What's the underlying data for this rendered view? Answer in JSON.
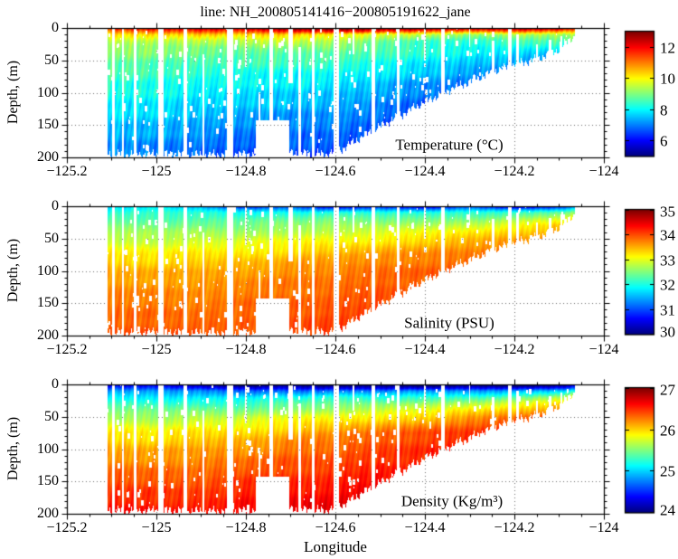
{
  "title": "line: NH_200805141416−200805191622_jane",
  "axes": {
    "x_label": "Longitude",
    "y_label": "Depth, (m)",
    "xlim": [
      -125.2,
      -124
    ],
    "ylim": [
      0,
      200
    ],
    "x_ticks": [
      -125.2,
      -125,
      -124.8,
      -124.6,
      -124.4,
      -124.2,
      -124
    ],
    "x_tick_labels": [
      "−125.2",
      "−125",
      "−124.8",
      "−124.6",
      "−124.4",
      "−124.2",
      "−124"
    ],
    "x_minor_step": 0.05,
    "y_ticks": [
      0,
      50,
      100,
      150,
      200
    ],
    "y_tick_labels": [
      "0",
      "50",
      "100",
      "150",
      "200"
    ],
    "y_minor_step": 10,
    "grid": "dotted"
  },
  "section_geometry": {
    "lon_extent": [
      -125.11,
      -124.065
    ],
    "bathymetry": {
      "lon": [
        -125.11,
        -125.0,
        -124.9,
        -124.8,
        -124.72,
        -124.62,
        -124.58,
        -124.55,
        -124.5,
        -124.45,
        -124.4,
        -124.35,
        -124.3,
        -124.25,
        -124.2,
        -124.15,
        -124.1,
        -124.08,
        -124.065
      ],
      "depth": [
        195,
        195,
        196,
        195,
        192,
        195,
        185,
        172,
        152,
        133,
        114,
        97,
        83,
        68,
        56,
        48,
        33,
        20,
        12
      ]
    },
    "gaps": [
      [
        -125.095,
        0.006,
        0,
        999
      ],
      [
        -125.075,
        0.005,
        0,
        999
      ],
      [
        -125.048,
        0.006,
        0,
        999
      ],
      [
        -124.99,
        0.013,
        0,
        999
      ],
      [
        -124.935,
        0.007,
        0,
        999
      ],
      [
        -124.895,
        0.005,
        40,
        999
      ],
      [
        -124.835,
        0.014,
        0,
        999
      ],
      [
        -124.8,
        0.005,
        0,
        60
      ],
      [
        -124.77,
        0.005,
        100,
        999
      ],
      [
        -124.744,
        0.008,
        0,
        999
      ],
      [
        -124.74,
        0.075,
        142,
        999
      ],
      [
        -124.7,
        0.01,
        0,
        85
      ],
      [
        -124.68,
        0.006,
        30,
        999
      ],
      [
        -124.649,
        0.007,
        0,
        999
      ],
      [
        -124.598,
        0.013,
        0,
        999
      ],
      [
        -124.56,
        0.005,
        0,
        40
      ],
      [
        -124.515,
        0.007,
        0,
        999
      ],
      [
        -124.46,
        0.007,
        0,
        999
      ],
      [
        -124.4,
        0.004,
        0,
        50
      ],
      [
        -124.36,
        0.008,
        0,
        999
      ],
      [
        -124.3,
        0.004,
        0,
        30
      ],
      [
        -124.247,
        0.005,
        20,
        999
      ],
      [
        -124.21,
        0.007,
        0,
        999
      ],
      [
        -124.193,
        0.006,
        10,
        999
      ],
      [
        -124.15,
        0.005,
        25,
        999
      ],
      [
        -124.12,
        0.007,
        18,
        999
      ],
      [
        -124.095,
        0.005,
        12,
        999
      ]
    ]
  },
  "chart_data": [
    {
      "type": "heatmap",
      "label": "Temperature (°C)",
      "colorbar": {
        "min": 5,
        "max": 13,
        "ticks": [
          6,
          8,
          10,
          12
        ],
        "colormap": "jet"
      },
      "x": [
        -125.11,
        -125.0,
        -124.9,
        -124.8,
        -124.7,
        -124.6,
        -124.5,
        -124.4,
        -124.3,
        -124.2,
        -124.1,
        -124.06
      ],
      "depths": [
        0,
        5,
        10,
        20,
        30,
        50,
        75,
        100,
        150,
        200
      ],
      "values": [
        [
          11.8,
          12.2,
          12.6,
          12.6,
          12.9,
          13.0,
          12.8,
          13.0,
          12.6,
          13.0,
          12.8,
          11.8
        ],
        [
          10.8,
          11.2,
          11.6,
          11.6,
          12.0,
          12.0,
          11.5,
          11.2,
          11.0,
          11.5,
          11.0,
          10.6
        ],
        [
          10.0,
          10.2,
          10.5,
          10.5,
          10.5,
          10.0,
          9.6,
          9.5,
          9.2,
          9.6,
          9.5,
          9.4
        ],
        [
          9.5,
          9.6,
          9.6,
          9.5,
          9.5,
          9.2,
          8.9,
          8.6,
          8.5,
          8.6,
          8.6,
          8.5
        ],
        [
          9.1,
          9.2,
          9.1,
          9.1,
          9.0,
          8.9,
          8.6,
          8.4,
          8.2,
          8.2,
          8.1,
          8.0
        ],
        [
          8.8,
          8.8,
          8.7,
          8.6,
          8.5,
          8.4,
          8.2,
          8.0,
          7.8,
          7.5,
          7.2,
          7.0
        ],
        [
          8.4,
          8.4,
          8.3,
          8.2,
          8.0,
          7.9,
          7.7,
          7.4,
          7.2,
          6.8,
          6.6,
          6.5
        ],
        [
          8.1,
          8.1,
          8.0,
          7.9,
          7.7,
          7.5,
          7.2,
          7.0,
          6.8,
          6.5,
          6.3,
          6.2
        ],
        [
          7.5,
          7.5,
          7.4,
          7.2,
          7.0,
          6.9,
          6.6,
          6.3,
          6.2,
          6.0,
          6.0,
          6.0
        ],
        [
          6.9,
          6.9,
          6.8,
          6.6,
          6.5,
          6.3,
          6.0,
          5.9,
          5.8,
          5.7,
          5.6,
          5.6
        ]
      ]
    },
    {
      "type": "heatmap",
      "label": "Salinity (PSU)",
      "colorbar": {
        "min": 30,
        "max": 35,
        "ticks": [
          30,
          31,
          32,
          33,
          34,
          35
        ],
        "colormap": "jet"
      },
      "x": [
        -125.11,
        -125.0,
        -124.9,
        -124.8,
        -124.7,
        -124.6,
        -124.5,
        -124.4,
        -124.3,
        -124.2,
        -124.1,
        -124.06
      ],
      "depths": [
        0,
        5,
        10,
        20,
        30,
        50,
        75,
        100,
        150,
        200
      ],
      "values": [
        [
          31.6,
          31.8,
          31.5,
          30.6,
          31.0,
          30.2,
          30.6,
          30.2,
          31.0,
          30.2,
          30.6,
          31.2
        ],
        [
          31.8,
          31.9,
          31.8,
          31.5,
          31.5,
          31.2,
          31.4,
          31.2,
          31.6,
          31.4,
          31.6,
          32.0
        ],
        [
          32.0,
          32.1,
          32.1,
          32.0,
          32.0,
          32.0,
          32.0,
          32.0,
          32.1,
          32.2,
          32.4,
          32.6
        ],
        [
          32.3,
          32.3,
          32.3,
          32.3,
          32.3,
          32.4,
          32.4,
          32.5,
          32.5,
          32.7,
          32.9,
          33.1
        ],
        [
          32.5,
          32.5,
          32.5,
          32.5,
          32.6,
          32.6,
          32.7,
          32.8,
          32.9,
          33.1,
          33.4,
          33.5
        ],
        [
          32.8,
          32.8,
          32.9,
          32.9,
          33.0,
          33.0,
          33.1,
          33.3,
          33.5,
          33.6,
          33.8,
          33.9
        ],
        [
          33.2,
          33.2,
          33.3,
          33.3,
          33.4,
          33.5,
          33.6,
          33.7,
          33.8,
          33.9,
          34.0,
          34.0
        ],
        [
          33.5,
          33.5,
          33.6,
          33.6,
          33.7,
          33.7,
          33.8,
          33.9,
          34.0,
          34.0,
          34.1,
          34.1
        ],
        [
          33.8,
          33.8,
          33.8,
          33.9,
          33.9,
          33.9,
          34.0,
          34.0,
          34.1,
          34.1,
          34.1,
          34.1
        ],
        [
          33.9,
          34.0,
          34.0,
          34.0,
          34.0,
          34.1,
          34.1,
          34.1,
          34.2,
          34.2,
          34.2,
          34.2
        ]
      ]
    },
    {
      "type": "heatmap",
      "label": "Density (Kg/m³)",
      "colorbar": {
        "min": 24,
        "max": 27,
        "ticks": [
          24,
          25,
          26,
          27
        ],
        "colormap": "jet"
      },
      "x": [
        -125.11,
        -125.0,
        -124.9,
        -124.8,
        -124.7,
        -124.6,
        -124.5,
        -124.4,
        -124.3,
        -124.2,
        -124.1,
        -124.06
      ],
      "depths": [
        0,
        5,
        10,
        20,
        30,
        50,
        75,
        100,
        150,
        200
      ],
      "values": [
        [
          24.2,
          24.3,
          24.1,
          23.8,
          24.0,
          23.7,
          23.9,
          23.7,
          24.0,
          23.7,
          23.9,
          24.2
        ],
        [
          24.5,
          24.5,
          24.4,
          24.3,
          24.3,
          24.2,
          24.2,
          24.2,
          24.3,
          24.3,
          24.4,
          24.6
        ],
        [
          24.8,
          24.8,
          24.8,
          24.7,
          24.7,
          24.7,
          24.7,
          24.8,
          24.8,
          24.9,
          25.0,
          25.2
        ],
        [
          25.1,
          25.1,
          25.1,
          25.1,
          25.1,
          25.2,
          25.2,
          25.3,
          25.3,
          25.4,
          25.6,
          25.8
        ],
        [
          25.3,
          25.3,
          25.3,
          25.3,
          25.4,
          25.4,
          25.5,
          25.6,
          25.7,
          25.8,
          26.0,
          26.2
        ],
        [
          25.6,
          25.6,
          25.7,
          25.7,
          25.8,
          25.8,
          25.9,
          26.0,
          26.2,
          26.3,
          26.5,
          26.6
        ],
        [
          25.9,
          25.9,
          26.0,
          26.0,
          26.1,
          26.2,
          26.3,
          26.4,
          26.5,
          26.6,
          26.7,
          26.7
        ],
        [
          26.1,
          26.1,
          26.2,
          26.2,
          26.3,
          26.3,
          26.4,
          26.5,
          26.6,
          26.6,
          26.7,
          26.7
        ],
        [
          26.4,
          26.4,
          26.4,
          26.5,
          26.5,
          26.5,
          26.6,
          26.6,
          26.7,
          26.7,
          26.8,
          26.8
        ],
        [
          26.6,
          26.6,
          26.6,
          26.7,
          26.7,
          26.7,
          26.8,
          26.8,
          26.8,
          26.9,
          26.9,
          26.9
        ]
      ]
    }
  ]
}
